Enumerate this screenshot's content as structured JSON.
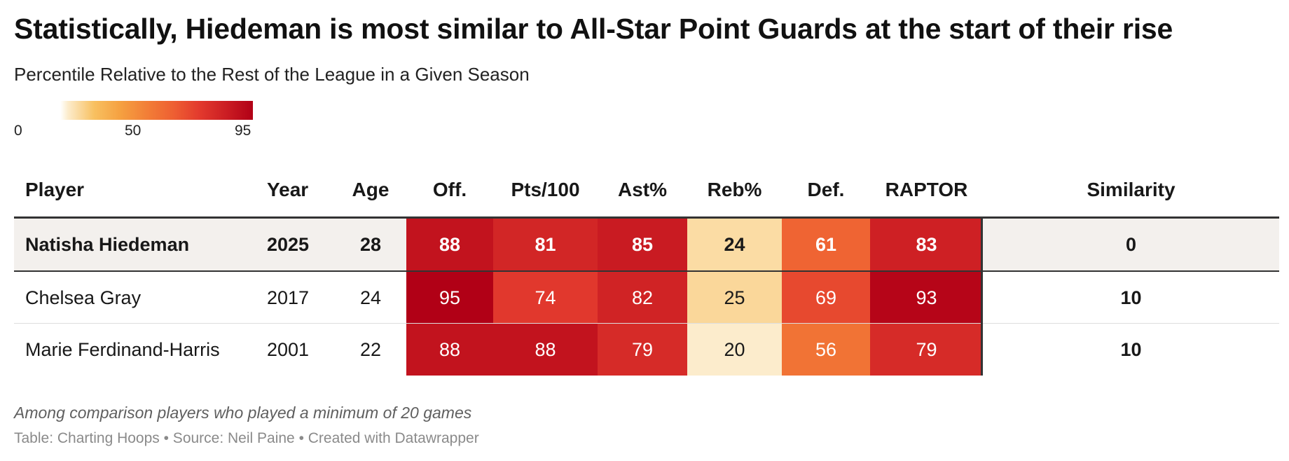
{
  "title": "Statistically, Hiedeman is most similar to All-Star Point Guards at the start of their rise",
  "subtitle": "Percentile Relative to the Rest of the League in a Given Season",
  "legend": {
    "min_label": "0",
    "mid_label": "50",
    "max_label": "95",
    "domain": [
      20,
      95
    ],
    "colors": [
      "#fceccc",
      "#f8c060",
      "#f5a040",
      "#f27e37",
      "#ee5f32",
      "#e2392d",
      "#cb1d23",
      "#b10016"
    ]
  },
  "chart_data": {
    "type": "table",
    "columns": [
      "Player",
      "Year",
      "Age",
      "Off.",
      "Pts/100",
      "Ast%",
      "Reb%",
      "Def.",
      "RAPTOR",
      "Similarity"
    ],
    "heatmap_columns": [
      "Off.",
      "Pts/100",
      "Ast%",
      "Reb%",
      "Def.",
      "RAPTOR"
    ],
    "rows": [
      {
        "player": "Natisha Hiedeman",
        "year": "2025",
        "age": "28",
        "off": 88,
        "pts100": 81,
        "ast": 85,
        "reb": 24,
        "def": 61,
        "raptor": 83,
        "similarity": "0",
        "highlight": true
      },
      {
        "player": "Chelsea Gray",
        "year": "2017",
        "age": "24",
        "off": 95,
        "pts100": 74,
        "ast": 82,
        "reb": 25,
        "def": 69,
        "raptor": 93,
        "similarity": "10",
        "highlight": false
      },
      {
        "player": "Marie Ferdinand-Harris",
        "year": "2001",
        "age": "22",
        "off": 88,
        "pts100": 88,
        "ast": 79,
        "reb": 20,
        "def": 56,
        "raptor": 79,
        "similarity": "10",
        "highlight": false
      }
    ]
  },
  "colors": {
    "highlight_row_bg": "#f3f0ed",
    "rule_dark": "#333333",
    "rule_light": "#dddddd",
    "separator": "#333333"
  },
  "notes": {
    "description": "Among comparison players who played a minimum of 20 games",
    "credit": "Table: Charting Hoops • Source: Neil Paine • Created with Datawrapper"
  }
}
